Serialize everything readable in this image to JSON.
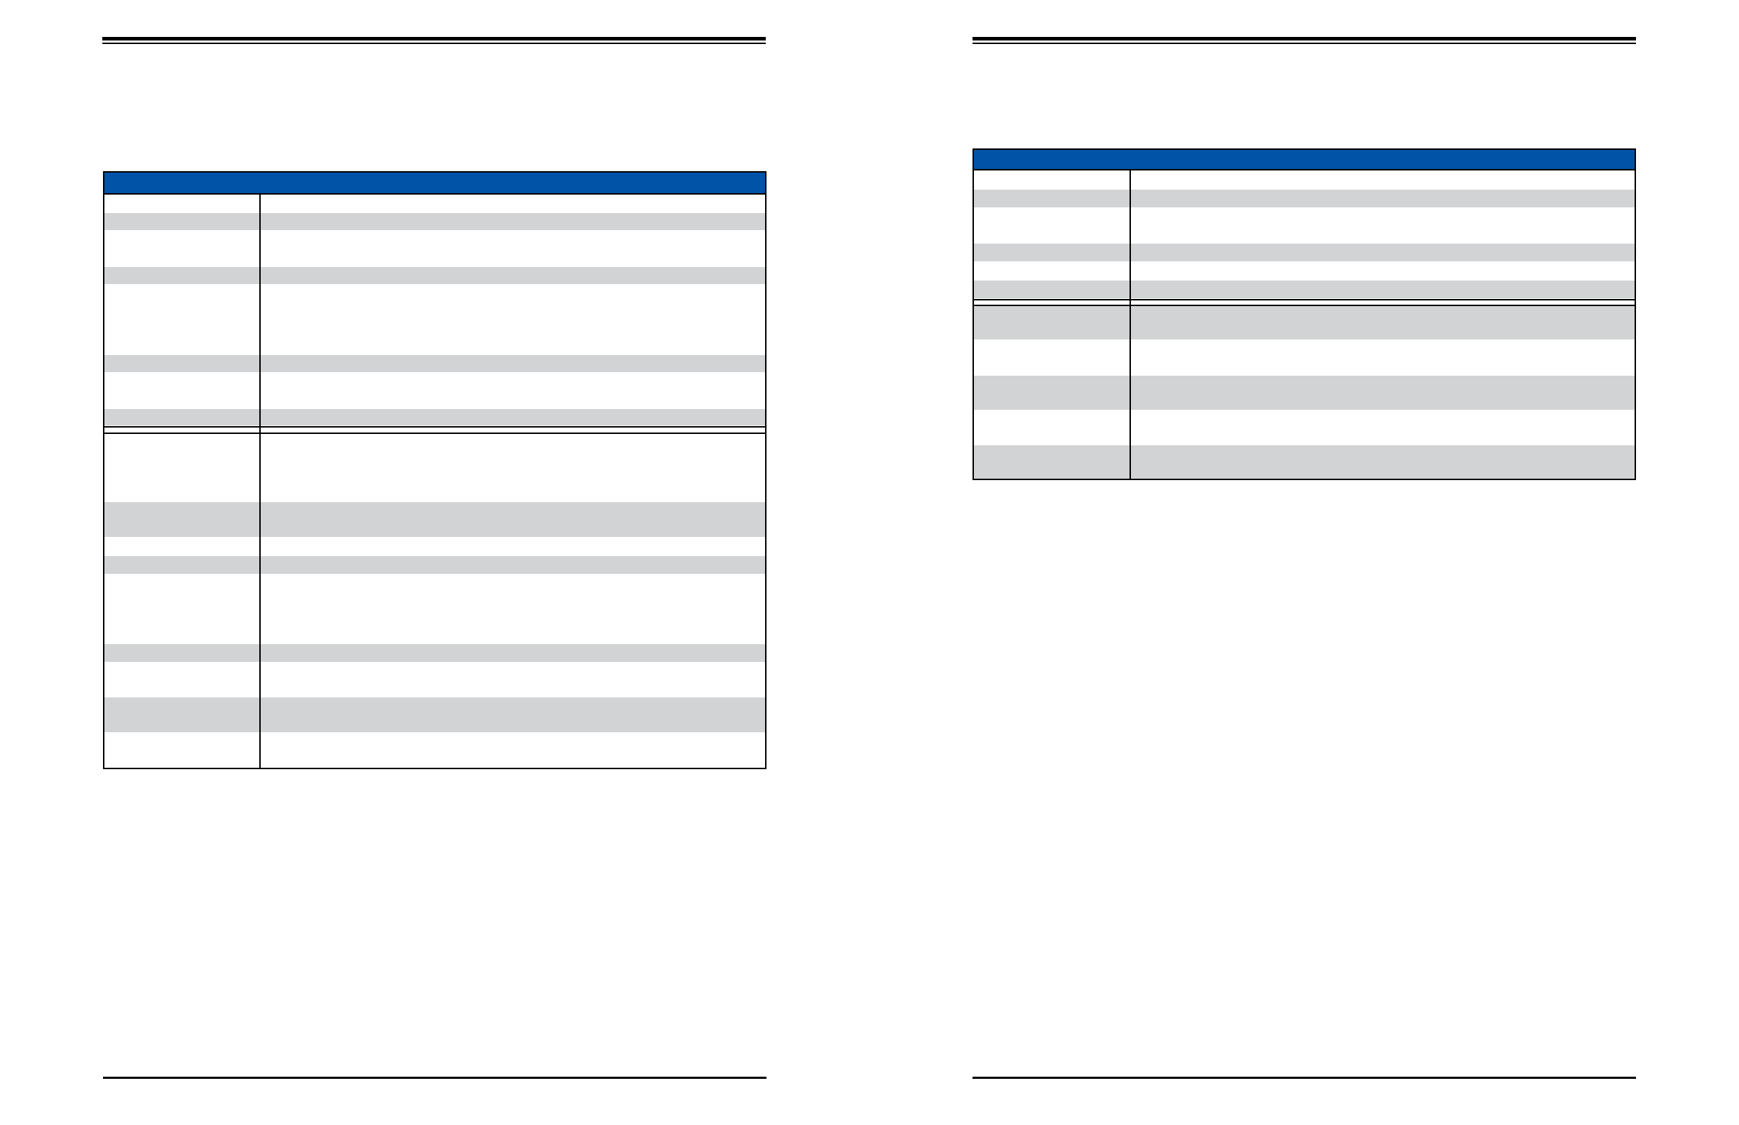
{
  "colors": {
    "table_header": "#0053a6",
    "row_shaded": "#d1d3d4",
    "row_plain": "#ffffff",
    "rules": "#000000"
  },
  "pages": [
    {
      "name": "left-page",
      "table": {
        "header": "",
        "rows_shaded": [
          false,
          true,
          false,
          true,
          false,
          true,
          false,
          true,
          false,
          true,
          false,
          true,
          false,
          true,
          false,
          true,
          false,
          true
        ],
        "section_break_after_row": 7
      }
    },
    {
      "name": "right-page",
      "table": {
        "header": "",
        "rows_shaded": [
          false,
          true,
          false,
          true,
          false,
          true,
          true,
          false,
          true,
          false,
          true
        ],
        "section_break_after_row": 5
      }
    }
  ]
}
